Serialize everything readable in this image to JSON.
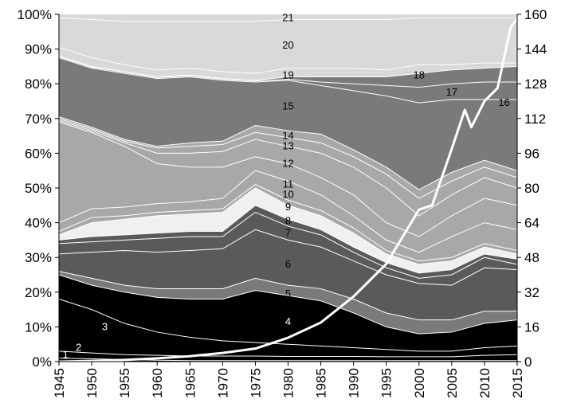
{
  "chart_data": {
    "type": "area",
    "stacked": true,
    "title": "",
    "xlabel": "",
    "ylabel": "",
    "x": [
      1945,
      1950,
      1955,
      1960,
      1965,
      1970,
      1975,
      1980,
      1985,
      1990,
      1995,
      2000,
      2005,
      2010,
      2015
    ],
    "x_tick_labels": [
      "1945",
      "1950",
      "1955",
      "1960",
      "1965",
      "1970",
      "1975",
      "1980",
      "1985",
      "1990",
      "1995",
      "2000",
      "2005",
      "2010",
      "2015"
    ],
    "xlim": [
      1945,
      2015
    ],
    "ylim": [
      0,
      100
    ],
    "y_tick_labels": [
      "0%",
      "10%",
      "20%",
      "30%",
      "40%",
      "50%",
      "60%",
      "70%",
      "80%",
      "90%",
      "100%"
    ],
    "y2lim": [
      0,
      160
    ],
    "y2_tick_labels": [
      "0",
      "16",
      "32",
      "48",
      "64",
      "80",
      "96",
      "112",
      "128",
      "144",
      "160"
    ],
    "grid": false,
    "legend": "none",
    "series_boundaries_pct": [
      [
        1.0,
        0.8,
        0.6,
        0.4,
        0.3,
        0.3,
        0.3,
        0.3,
        0.3,
        0.3,
        0.3,
        0.3,
        0.3,
        0.3,
        0.3
      ],
      [
        3.0,
        2.5,
        2.0,
        1.8,
        1.6,
        1.6,
        1.6,
        1.5,
        1.5,
        1.5,
        1.4,
        1.4,
        1.4,
        1.8,
        2.0
      ],
      [
        18.0,
        15.0,
        11.0,
        8.5,
        7.0,
        6.0,
        5.5,
        5.0,
        4.5,
        4.0,
        3.5,
        3.0,
        3.0,
        4.0,
        4.5
      ],
      [
        25.0,
        22.0,
        20.0,
        18.5,
        18.0,
        18.0,
        20.5,
        19.0,
        17.5,
        14.0,
        10.0,
        8.0,
        8.5,
        11.0,
        12.0
      ],
      [
        26.0,
        24.0,
        22.0,
        21.0,
        21.0,
        21.0,
        24.0,
        22.0,
        21.0,
        18.0,
        14.0,
        12.0,
        12.0,
        14.5,
        14.5
      ],
      [
        31.0,
        31.5,
        32.0,
        31.5,
        32.0,
        32.5,
        38.0,
        35.0,
        33.0,
        29.0,
        25.0,
        22.5,
        22.0,
        27.0,
        26.5
      ],
      [
        34.0,
        34.5,
        35.0,
        35.5,
        36.0,
        36.0,
        43.0,
        39.0,
        36.5,
        31.5,
        27.0,
        24.0,
        25.0,
        30.0,
        28.0
      ],
      [
        35.0,
        36.0,
        36.5,
        37.0,
        37.5,
        37.5,
        45.0,
        41.0,
        38.0,
        33.0,
        28.5,
        25.5,
        26.5,
        31.0,
        29.5
      ],
      [
        36.5,
        40.0,
        41.0,
        42.0,
        42.5,
        43.0,
        50.0,
        45.0,
        42.0,
        37.0,
        31.0,
        28.0,
        29.0,
        33.0,
        31.0
      ],
      [
        37.5,
        41.5,
        42.0,
        43.0,
        43.5,
        44.0,
        51.0,
        46.5,
        43.5,
        38.5,
        32.0,
        29.0,
        30.0,
        34.0,
        32.0
      ],
      [
        40.0,
        44.0,
        44.5,
        45.5,
        46.0,
        47.0,
        55.0,
        52.0,
        48.0,
        42.0,
        35.0,
        31.5,
        36.0,
        40.0,
        38.0
      ],
      [
        69.0,
        66.0,
        62.0,
        57.0,
        56.0,
        56.0,
        59.0,
        57.0,
        53.0,
        48.0,
        40.0,
        36.0,
        42.0,
        47.0,
        45.0
      ],
      [
        69.5,
        66.5,
        63.0,
        60.0,
        60.0,
        60.5,
        64.0,
        62.0,
        60.0,
        56.0,
        50.0,
        42.0,
        48.0,
        53.0,
        50.0
      ],
      [
        70.0,
        67.0,
        63.5,
        61.5,
        62.0,
        62.5,
        66.0,
        64.5,
        63.0,
        59.0,
        54.0,
        47.0,
        52.0,
        56.0,
        53.0
      ],
      [
        70.5,
        67.5,
        64.0,
        62.0,
        63.0,
        63.5,
        68.0,
        66.5,
        65.5,
        61.0,
        56.0,
        49.5,
        54.5,
        58.0,
        55.0
      ],
      [
        87.5,
        84.5,
        83.0,
        81.5,
        82.0,
        81.0,
        80.5,
        81.0,
        79.5,
        78.0,
        76.5,
        74.5,
        75.5,
        75.5,
        75.5
      ],
      [
        87.8,
        84.8,
        83.3,
        81.8,
        82.3,
        81.3,
        80.8,
        81.3,
        80.5,
        80.0,
        79.5,
        79.0,
        80.0,
        80.5,
        80.5
      ],
      [
        88.0,
        85.0,
        83.5,
        82.0,
        82.5,
        81.5,
        81.0,
        82.0,
        82.0,
        82.0,
        82.0,
        83.0,
        84.0,
        84.5,
        85.0
      ],
      [
        90.5,
        87.5,
        85.5,
        84.0,
        84.5,
        83.5,
        83.0,
        84.5,
        84.5,
        84.5,
        84.0,
        85.5,
        85.5,
        86.0,
        86.0
      ],
      [
        99.0,
        98.5,
        98.0,
        98.0,
        98.0,
        98.0,
        98.0,
        98.5,
        98.5,
        98.5,
        98.5,
        99.0,
        99.0,
        99.0,
        99.0
      ],
      [
        100,
        100,
        100,
        100,
        100,
        100,
        100,
        100,
        100,
        100,
        100,
        100,
        100,
        100,
        100
      ]
    ],
    "band_fills": [
      "#000000",
      "#000000",
      "#000000",
      "#000000",
      "#7a7a7a",
      "#5a5a5a",
      "#5a5a5a",
      "#5a5a5a",
      "#f0f0f0",
      "#a8a8a8",
      "#a8a8a8",
      "#a8a8a8",
      "#a8a8a8",
      "#a8a8a8",
      "#a8a8a8",
      "#7a7a7a",
      "#7a7a7a",
      "#7a7a7a",
      "#d9d9d9",
      "#d9d9d9",
      "#d9d9d9"
    ],
    "secondary_line": {
      "axis": "right",
      "color": "#ffffff",
      "x": [
        1945,
        1950,
        1955,
        1960,
        1965,
        1970,
        1975,
        1980,
        1985,
        1990,
        1995,
        2000,
        2002,
        2005,
        2007,
        2008,
        2010,
        2012,
        2014,
        2015
      ],
      "y": [
        0,
        0.3,
        0.8,
        1.5,
        2.5,
        4,
        6,
        11,
        18,
        30,
        45,
        70,
        72,
        98,
        116,
        108,
        120,
        126,
        154,
        158
      ]
    },
    "band_labels": [
      {
        "text": "1",
        "x": 1946,
        "y": 2
      },
      {
        "text": "2",
        "x": 1948,
        "y": 4
      },
      {
        "text": "3",
        "x": 1952,
        "y": 10
      },
      {
        "text": "4",
        "x": 1980,
        "y": 11.5
      },
      {
        "text": "5",
        "x": 1980,
        "y": 19.5
      },
      {
        "text": "6",
        "x": 1980,
        "y": 28
      },
      {
        "text": "7",
        "x": 1980,
        "y": 37
      },
      {
        "text": "8",
        "x": 1980,
        "y": 40.5
      },
      {
        "text": "9",
        "x": 1980,
        "y": 44.5
      },
      {
        "text": "10",
        "x": 1980,
        "y": 48
      },
      {
        "text": "11",
        "x": 1980,
        "y": 51
      },
      {
        "text": "12",
        "x": 1980,
        "y": 57
      },
      {
        "text": "13",
        "x": 1980,
        "y": 62
      },
      {
        "text": "14",
        "x": 1980,
        "y": 65
      },
      {
        "text": "15",
        "x": 1980,
        "y": 73.5
      },
      {
        "text": "16",
        "x": 2013,
        "y": 74.5
      },
      {
        "text": "17",
        "x": 2005,
        "y": 77.5
      },
      {
        "text": "18",
        "x": 2000,
        "y": 82.5
      },
      {
        "text": "19",
        "x": 1980,
        "y": 82.5
      },
      {
        "text": "20",
        "x": 1980,
        "y": 91
      },
      {
        "text": "21",
        "x": 1980,
        "y": 99
      }
    ]
  }
}
